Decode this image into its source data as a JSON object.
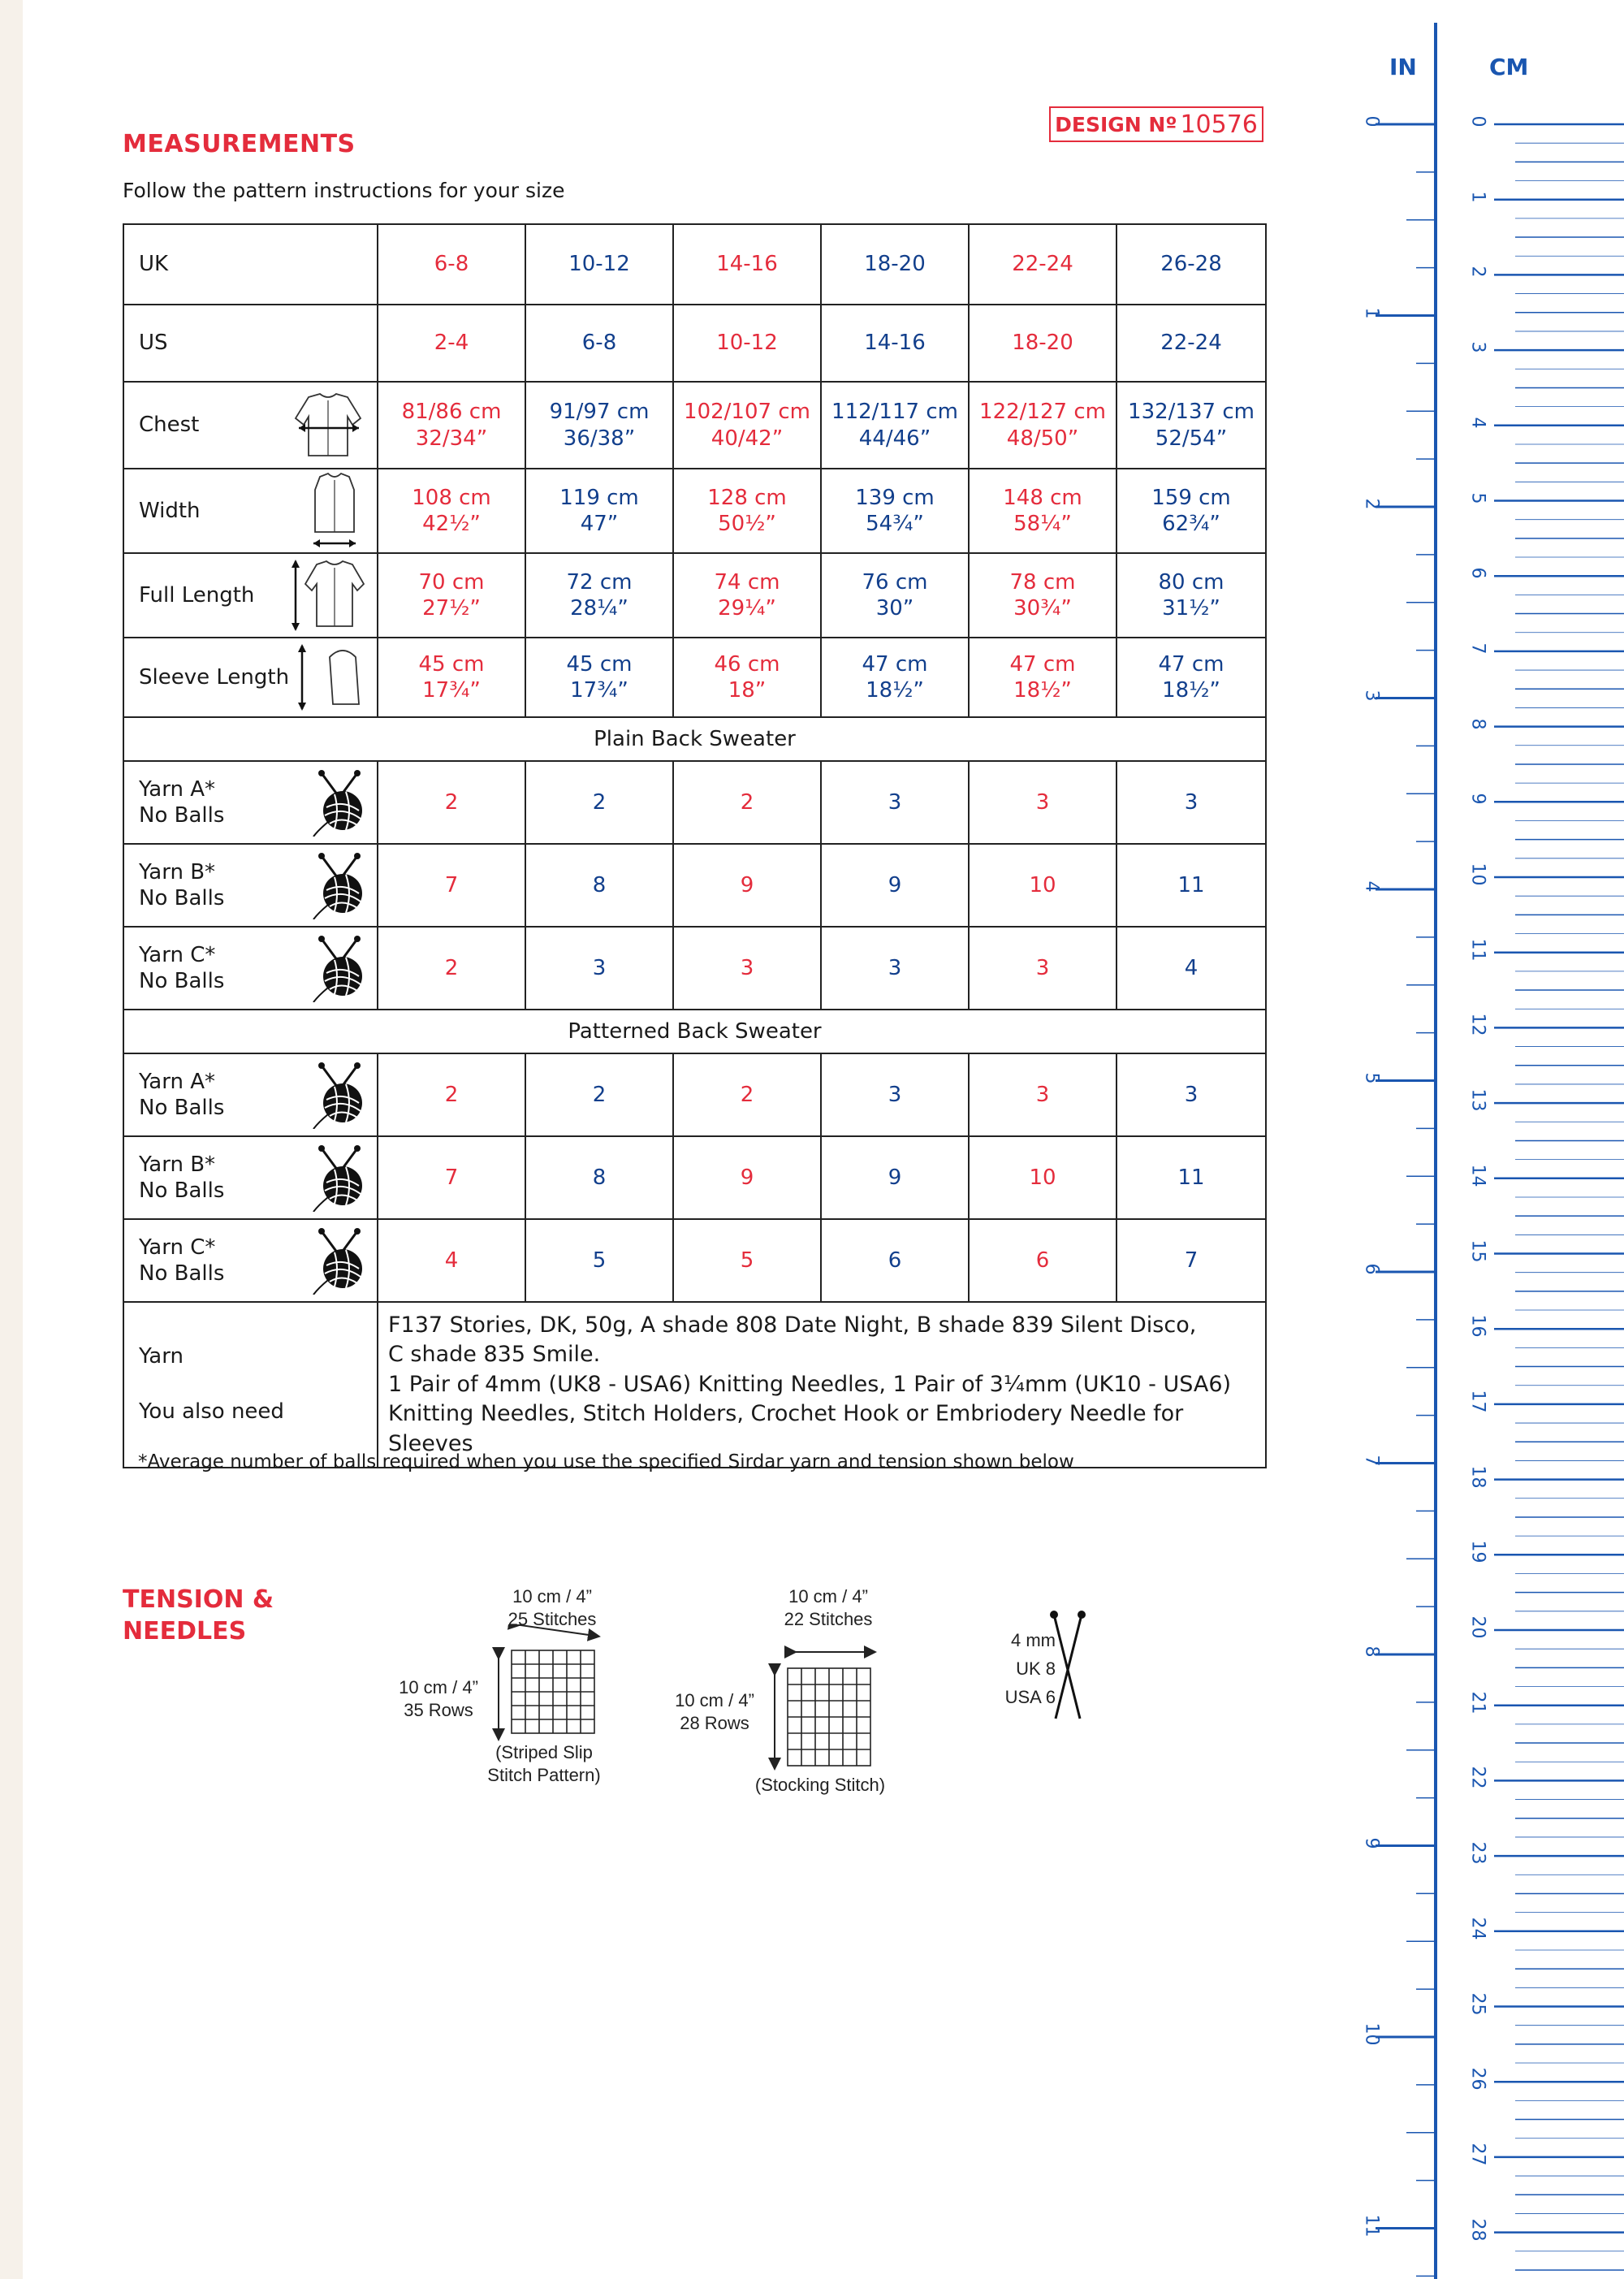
{
  "header": {
    "title": "MEASUREMENTS",
    "design_label": "DESIGN Nº",
    "design_number": "10576",
    "intro": "Follow the pattern instructions for your size"
  },
  "colors": {
    "red": "#e42c3c",
    "blue": "#123f8c",
    "ruler_blue": "#1a56b0"
  },
  "table": {
    "uk": {
      "label": "UK",
      "values": [
        "6-8",
        "10-12",
        "14-16",
        "18-20",
        "22-24",
        "26-28"
      ]
    },
    "us": {
      "label": "US",
      "values": [
        "2-4",
        "6-8",
        "10-12",
        "14-16",
        "18-20",
        "22-24"
      ]
    },
    "measures": [
      {
        "label": "Chest",
        "icon": "cardigan-chest-icon",
        "cm": [
          "81/86 cm",
          "91/97 cm",
          "102/107 cm",
          "112/117 cm",
          "122/127 cm",
          "132/137 cm"
        ],
        "in": [
          "32/34”",
          "36/38”",
          "40/42”",
          "44/46”",
          "48/50”",
          "52/54”"
        ]
      },
      {
        "label": "Width",
        "icon": "cardigan-width-icon",
        "cm": [
          "108 cm",
          "119 cm",
          "128 cm",
          "139 cm",
          "148 cm",
          "159 cm"
        ],
        "in": [
          "42½”",
          "47”",
          "50½”",
          "54¾”",
          "58¼”",
          "62¾”"
        ]
      },
      {
        "label": "Full Length",
        "icon": "cardigan-length-icon",
        "cm": [
          "70 cm",
          "72 cm",
          "74 cm",
          "76 cm",
          "78 cm",
          "80 cm"
        ],
        "in": [
          "27½”",
          "28¼”",
          "29¼”",
          "30”",
          "30¾”",
          "31½”"
        ]
      },
      {
        "label": "Sleeve Length",
        "icon": "sleeve-length-icon",
        "cm": [
          "45 cm",
          "45 cm",
          "46 cm",
          "47 cm",
          "47 cm",
          "47 cm"
        ],
        "in": [
          "17¾”",
          "17¾”",
          "18”",
          "18½”",
          "18½”",
          "18½”"
        ]
      }
    ],
    "sections": [
      {
        "title": "Plain Back Sweater",
        "rows": [
          {
            "label1": "Yarn A*",
            "label2": "No Balls",
            "values": [
              "2",
              "2",
              "2",
              "3",
              "3",
              "3"
            ]
          },
          {
            "label1": "Yarn B*",
            "label2": "No Balls",
            "values": [
              "7",
              "8",
              "9",
              "9",
              "10",
              "11"
            ]
          },
          {
            "label1": "Yarn C*",
            "label2": "No Balls",
            "values": [
              "2",
              "3",
              "3",
              "3",
              "3",
              "4"
            ]
          }
        ]
      },
      {
        "title": "Patterned Back Sweater",
        "rows": [
          {
            "label1": "Yarn A*",
            "label2": "No Balls",
            "values": [
              "2",
              "2",
              "2",
              "3",
              "3",
              "3"
            ]
          },
          {
            "label1": "Yarn B*",
            "label2": "No Balls",
            "values": [
              "7",
              "8",
              "9",
              "9",
              "10",
              "11"
            ]
          },
          {
            "label1": "Yarn C*",
            "label2": "No Balls",
            "values": [
              "4",
              "5",
              "5",
              "6",
              "6",
              "7"
            ]
          }
        ]
      }
    ],
    "yarn_label": "Yarn",
    "also_label": "You also need",
    "yarn_line1": "F137 Stories, DK, 50g,  A shade 808 Date Night, B shade 839 Silent Disco,",
    "yarn_line2": "C shade 835 Smile.",
    "also_line1": "1 Pair of 4mm (UK8 - USA6) Knitting Needles, 1 Pair of 3¼mm (UK10 - USA6)",
    "also_line2": "Knitting Needles, Stitch Holders, Crochet Hook or Embriodery Needle for Sleeves"
  },
  "footnote": "*Average number of balls required when you use the specified Sirdar yarn and tension shown below",
  "tension": {
    "title_line1": "TENSION &",
    "title_line2": "NEEDLES",
    "diagram1": {
      "top1": "10 cm / 4”",
      "top2": "25 Stitches",
      "side1": "10 cm / 4”",
      "side2": "35 Rows",
      "bottom1": "(Striped Slip",
      "bottom2": "Stitch Pattern)"
    },
    "diagram2": {
      "top1": "10 cm / 4”",
      "top2": "22 Stitches",
      "side1": "10 cm / 4”",
      "side2": "28 Rows",
      "bottom1": "(Stocking Stitch)"
    },
    "needles": {
      "size": "4 mm",
      "uk": "UK 8",
      "usa": "USA 6"
    }
  },
  "ruler": {
    "in_label": "IN",
    "cm_label": "CM",
    "inch_numbers": [
      "0",
      "1",
      "2",
      "3",
      "4",
      "5",
      "6",
      "7",
      "8",
      "9",
      "10",
      "11"
    ],
    "cm_numbers": [
      "0",
      "1",
      "2",
      "3",
      "4",
      "5",
      "6",
      "7",
      "8",
      "9",
      "10",
      "11",
      "12",
      "13",
      "14",
      "15",
      "16",
      "17",
      "18",
      "19",
      "20",
      "21",
      "22",
      "23",
      "24",
      "25",
      "26",
      "27",
      "28"
    ]
  }
}
